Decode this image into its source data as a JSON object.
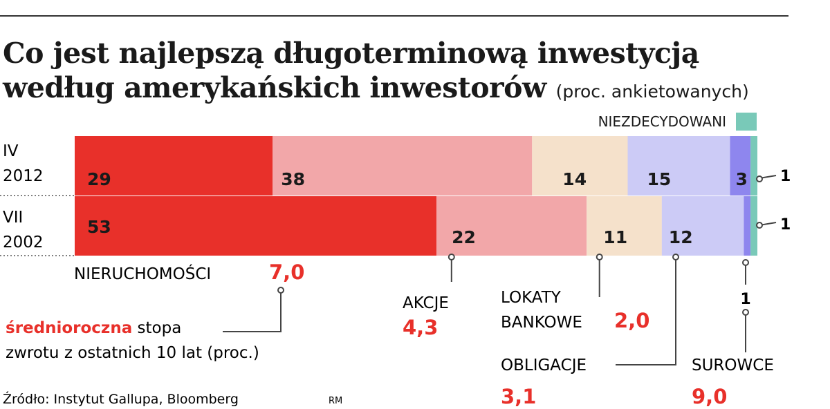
{
  "chart_data": {
    "type": "bar",
    "orientation": "horizontal",
    "stacked": true,
    "title": "Co jest najlepszą długoterminową inwestycją",
    "title_line2": "według amerykańskich inwestorów",
    "subtitle": "(proc. ankietowanych)",
    "xlim": [
      0,
      100
    ],
    "grid": false,
    "rows": [
      {
        "label_line1": "IV",
        "label_line2": "2012"
      },
      {
        "label_line1": "VII",
        "label_line2": "2002"
      }
    ],
    "series": [
      {
        "name": "NIERUCHOMOŚCI",
        "color": "#e8302a",
        "values": [
          29,
          53
        ],
        "value_labels": [
          "29",
          "53"
        ],
        "return_value": "7,0"
      },
      {
        "name": "AKCJE",
        "color": "#f2a7a9",
        "values": [
          38,
          22
        ],
        "value_labels": [
          "38",
          "22"
        ],
        "return_value": "4,3"
      },
      {
        "name_line1": "LOKATY",
        "name_line2": "BANKOWE",
        "color": "#f5e1cb",
        "values": [
          14,
          11
        ],
        "value_labels": [
          "14",
          "11"
        ],
        "return_value": "2,0"
      },
      {
        "name": "OBLIGACJE",
        "color": "#cccbf6",
        "values": [
          15,
          12
        ],
        "value_labels": [
          "15",
          "12"
        ],
        "return_value": "3,1"
      },
      {
        "name": "SUROWCE",
        "color": "#8e86ee",
        "values": [
          3,
          1
        ],
        "value_labels": [
          "3",
          "1"
        ],
        "return_value": "9,0"
      },
      {
        "name": "NIEZDECYDOWANI",
        "color": "#79c9b8",
        "values": [
          1,
          1
        ],
        "value_labels": [
          "1",
          "1"
        ]
      }
    ],
    "legend_placement": "top-right"
  },
  "return_note": {
    "highlight": "średnioroczna",
    "line1_rest": "stopa",
    "line2": "zwrotu z ostatnich 10 lat (proc.)"
  },
  "source": "Źródło: Instytut Gallupa, Bloomberg",
  "credit": "RM",
  "colors": {
    "accent_red": "#e8302a",
    "text": "#1a1a1a",
    "leader": "#444444"
  }
}
